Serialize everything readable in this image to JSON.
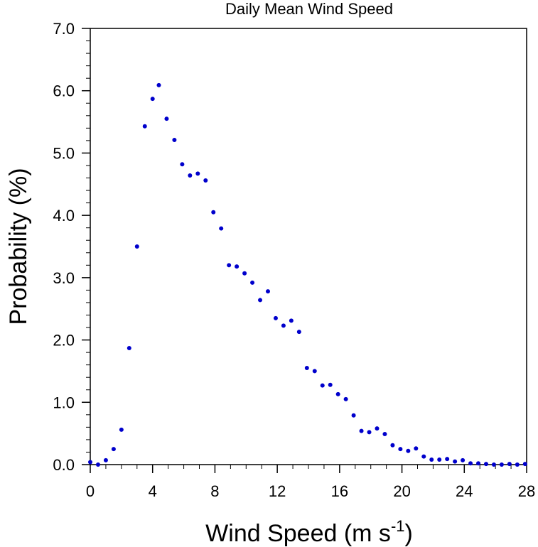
{
  "chart_data": {
    "type": "scatter",
    "title": "Daily Mean Wind Speed",
    "xlabel_main": "Wind Speed (m s",
    "xlabel_sup": "-1",
    "xlabel_close": ")",
    "ylabel": "Probability (%)",
    "xlim": [
      0,
      28
    ],
    "ylim": [
      0,
      7
    ],
    "x_ticks": [
      "0",
      "4",
      "8",
      "12",
      "16",
      "20",
      "24",
      "28"
    ],
    "y_ticks": [
      "0.0",
      "1.0",
      "2.0",
      "3.0",
      "4.0",
      "5.0",
      "6.0",
      "7.0"
    ],
    "marker_color": "#0000cc",
    "series": [
      {
        "x": [
          0.0,
          0.5,
          1.0,
          1.5,
          2.0,
          2.5,
          3.0,
          3.5,
          4.0,
          4.4,
          4.9,
          5.4,
          5.9,
          6.4,
          6.9,
          7.4,
          7.9,
          8.4,
          8.9,
          9.4,
          9.9,
          10.4,
          10.9,
          11.4,
          11.9,
          12.4,
          12.9,
          13.4,
          13.9,
          14.4,
          14.9,
          15.4,
          15.9,
          16.4,
          16.9,
          17.4,
          17.9,
          18.4,
          18.9,
          19.4,
          19.9,
          20.4,
          20.9,
          21.4,
          21.9,
          22.4,
          22.9,
          23.4,
          23.9,
          24.4,
          24.9,
          25.4,
          25.9,
          26.4,
          26.9,
          27.4,
          27.9
        ],
        "y": [
          0.04,
          0.0,
          0.07,
          0.25,
          0.56,
          1.87,
          3.5,
          5.43,
          5.87,
          6.09,
          5.55,
          5.21,
          4.82,
          4.64,
          4.67,
          4.56,
          4.05,
          3.79,
          3.2,
          3.18,
          3.07,
          2.92,
          2.64,
          2.78,
          2.35,
          2.23,
          2.31,
          2.13,
          1.55,
          1.5,
          1.27,
          1.28,
          1.13,
          1.05,
          0.79,
          0.54,
          0.52,
          0.58,
          0.49,
          0.31,
          0.25,
          0.22,
          0.26,
          0.13,
          0.08,
          0.08,
          0.09,
          0.05,
          0.07,
          0.02,
          0.02,
          0.01,
          0.0,
          0.0,
          0.01,
          0.0,
          0.01
        ]
      }
    ]
  }
}
